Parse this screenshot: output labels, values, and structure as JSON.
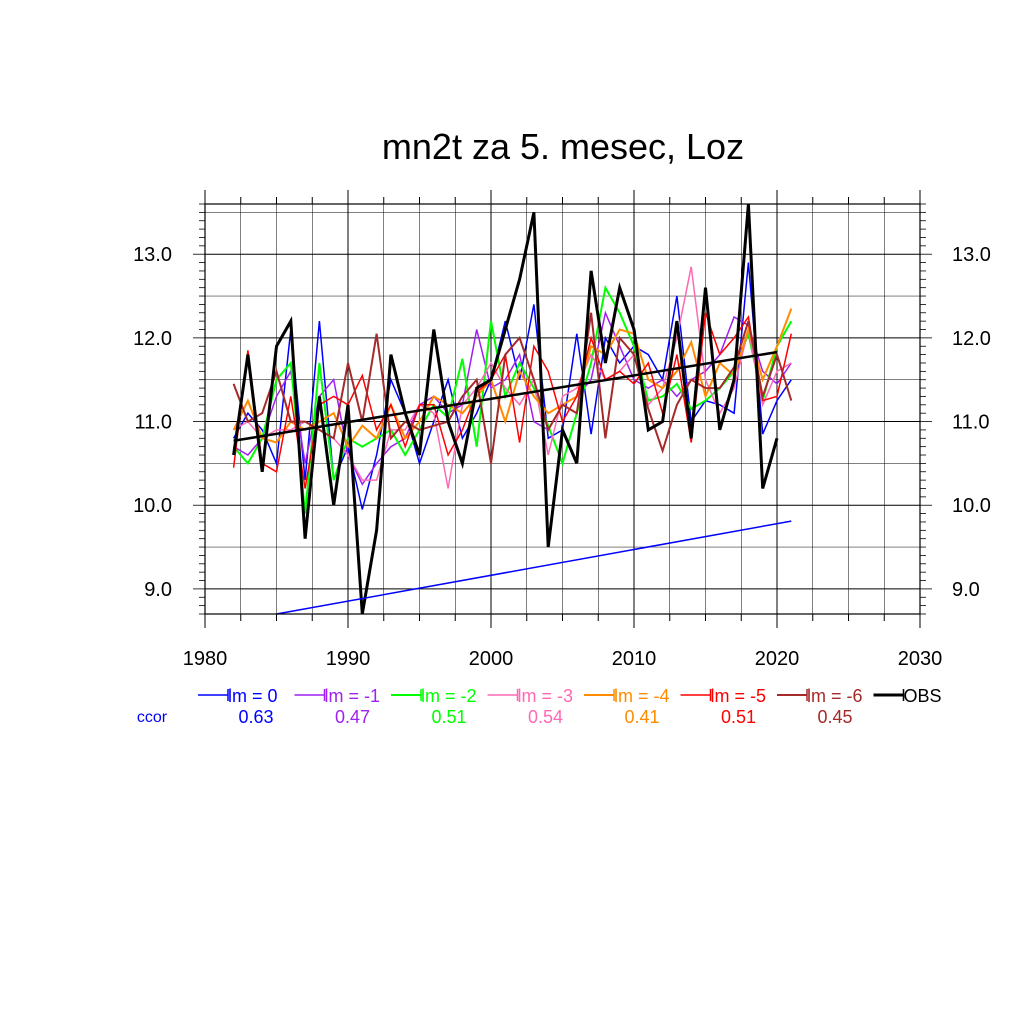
{
  "chart_data": {
    "type": "line",
    "title": "mn2t za 5. mesec, Loz",
    "xlim": [
      1980,
      2030
    ],
    "ylim": [
      8.7,
      13.6
    ],
    "x_ticks": [
      "1980",
      "1990",
      "2000",
      "2010",
      "2020",
      "2030"
    ],
    "y_ticks": [
      "9.0",
      "10.0",
      "11.0",
      "12.0",
      "13.0"
    ],
    "grid": true,
    "legend_position": "bottom",
    "ccor_label": "ccor",
    "x": [
      1982,
      1983,
      1984,
      1985,
      1986,
      1987,
      1988,
      1989,
      1990,
      1991,
      1992,
      1993,
      1994,
      1995,
      1996,
      1997,
      1998,
      1999,
      2000,
      2001,
      2002,
      2003,
      2004,
      2005,
      2006,
      2007,
      2008,
      2009,
      2010,
      2011,
      2012,
      2013,
      2014,
      2015,
      2016,
      2017,
      2018,
      2019,
      2020,
      2021
    ],
    "series": [
      {
        "name": "lm = 0",
        "color": "#0000ff",
        "ccor": "0.63",
        "width": 1.5,
        "values": [
          10.8,
          11.1,
          10.9,
          10.5,
          12.1,
          10.3,
          12.2,
          10.3,
          10.7,
          9.95,
          10.6,
          11.5,
          11.1,
          10.5,
          11.0,
          11.5,
          10.8,
          11.1,
          11.5,
          12.2,
          11.5,
          12.4,
          10.8,
          10.9,
          12.05,
          10.85,
          12.0,
          11.7,
          11.9,
          11.8,
          11.5,
          12.5,
          11.0,
          11.25,
          11.2,
          11.1,
          12.9,
          10.85,
          11.25,
          11.5
        ]
      },
      {
        "name": "lm = -1",
        "color": "#a020f0",
        "ccor": "0.47",
        "width": 1.5,
        "values": [
          10.7,
          10.6,
          10.8,
          11.3,
          11.6,
          10.5,
          11.3,
          11.5,
          10.6,
          10.25,
          10.5,
          10.7,
          10.8,
          11.2,
          11.3,
          11.1,
          11.2,
          12.1,
          11.4,
          11.5,
          11.8,
          11.0,
          10.9,
          11.2,
          11.3,
          11.5,
          12.3,
          11.9,
          11.5,
          11.4,
          11.5,
          11.3,
          11.5,
          11.6,
          11.8,
          12.25,
          12.15,
          11.6,
          11.45,
          11.7
        ]
      },
      {
        "name": "lm = -2",
        "color": "#00ff00",
        "ccor": "0.51",
        "width": 2,
        "values": [
          10.7,
          10.5,
          10.8,
          11.5,
          11.7,
          9.9,
          11.7,
          10.3,
          10.8,
          10.7,
          10.8,
          10.9,
          10.6,
          10.9,
          11.2,
          11.05,
          11.75,
          10.7,
          12.2,
          11.3,
          11.7,
          11.4,
          10.95,
          10.5,
          11.1,
          11.7,
          12.6,
          12.3,
          11.9,
          11.25,
          11.3,
          11.45,
          11.15,
          11.25,
          11.4,
          11.6,
          12.05,
          11.25,
          11.9,
          12.2
        ]
      },
      {
        "name": "lm = -3",
        "color": "#ff69b4",
        "ccor": "0.54",
        "width": 1.5,
        "values": [
          10.9,
          11.0,
          10.8,
          10.9,
          10.9,
          11.0,
          10.9,
          10.8,
          10.6,
          10.3,
          10.3,
          10.9,
          10.9,
          11.2,
          11.1,
          10.2,
          11.2,
          11.4,
          11.7,
          11.4,
          11.2,
          11.5,
          10.6,
          11.3,
          11.4,
          11.8,
          11.5,
          11.6,
          11.8,
          11.2,
          11.4,
          12.0,
          12.85,
          11.5,
          11.1,
          11.4,
          12.1,
          11.2,
          11.6,
          11.7
        ]
      },
      {
        "name": "lm = -4",
        "color": "#ff8c00",
        "ccor": "0.41",
        "width": 2,
        "values": [
          10.9,
          11.25,
          10.8,
          10.75,
          11.0,
          10.9,
          11.0,
          11.1,
          10.7,
          10.95,
          10.8,
          11.2,
          10.8,
          11.0,
          11.3,
          11.2,
          11.1,
          11.3,
          11.5,
          11.0,
          11.6,
          11.3,
          11.1,
          11.2,
          11.3,
          11.9,
          11.8,
          12.1,
          12.05,
          11.5,
          11.4,
          11.6,
          11.95,
          11.3,
          11.7,
          11.55,
          12.1,
          11.5,
          11.9,
          12.35
        ]
      },
      {
        "name": "lm = -5",
        "color": "#ff0000",
        "ccor": "0.51",
        "width": 1.5,
        "values": [
          10.45,
          11.85,
          10.5,
          10.4,
          11.3,
          10.2,
          11.2,
          11.3,
          11.2,
          11.55,
          10.9,
          11.2,
          10.7,
          11.2,
          11.2,
          10.6,
          10.9,
          11.35,
          11.5,
          11.8,
          10.75,
          11.9,
          11.6,
          11.0,
          11.3,
          12.0,
          11.5,
          11.6,
          11.45,
          11.7,
          11.1,
          11.8,
          10.75,
          12.3,
          11.8,
          12.0,
          12.25,
          11.25,
          11.3,
          12.05
        ]
      },
      {
        "name": "lm = -6",
        "color": "#a52a2a",
        "ccor": "0.45",
        "width": 2,
        "values": [
          11.45,
          11.0,
          11.1,
          11.6,
          11.0,
          11.0,
          10.9,
          10.8,
          11.7,
          11.0,
          12.05,
          10.8,
          11.0,
          10.9,
          10.95,
          11.0,
          11.3,
          11.5,
          10.5,
          11.8,
          12.0,
          11.5,
          10.9,
          11.2,
          11.1,
          12.3,
          10.8,
          12.0,
          11.8,
          11.15,
          10.65,
          11.2,
          11.5,
          11.4,
          11.4,
          11.65,
          12.2,
          11.3,
          11.8,
          11.25
        ]
      },
      {
        "name": "OBS",
        "color": "#000000",
        "ccor": "",
        "width": 3,
        "values": [
          10.6,
          11.8,
          10.4,
          11.9,
          12.2,
          9.6,
          11.3,
          10.0,
          11.2,
          8.7,
          9.7,
          11.8,
          11.1,
          10.6,
          12.1,
          11.0,
          10.5,
          11.4,
          11.5,
          12.1,
          12.7,
          13.5,
          9.5,
          10.9,
          10.5,
          12.8,
          11.7,
          12.6,
          12.1,
          10.9,
          11.0,
          12.2,
          10.8,
          12.6,
          10.9,
          11.5,
          13.6,
          10.2,
          10.8,
          null
        ]
      }
    ],
    "trend_lines": [
      {
        "color": "#000000",
        "width": 2.5,
        "x": [
          1982,
          2020
        ],
        "y": [
          10.77,
          11.83
        ]
      },
      {
        "color": "#0000ff",
        "width": 1.5,
        "x": [
          1985,
          2021
        ],
        "y": [
          8.7,
          9.81
        ]
      }
    ]
  }
}
